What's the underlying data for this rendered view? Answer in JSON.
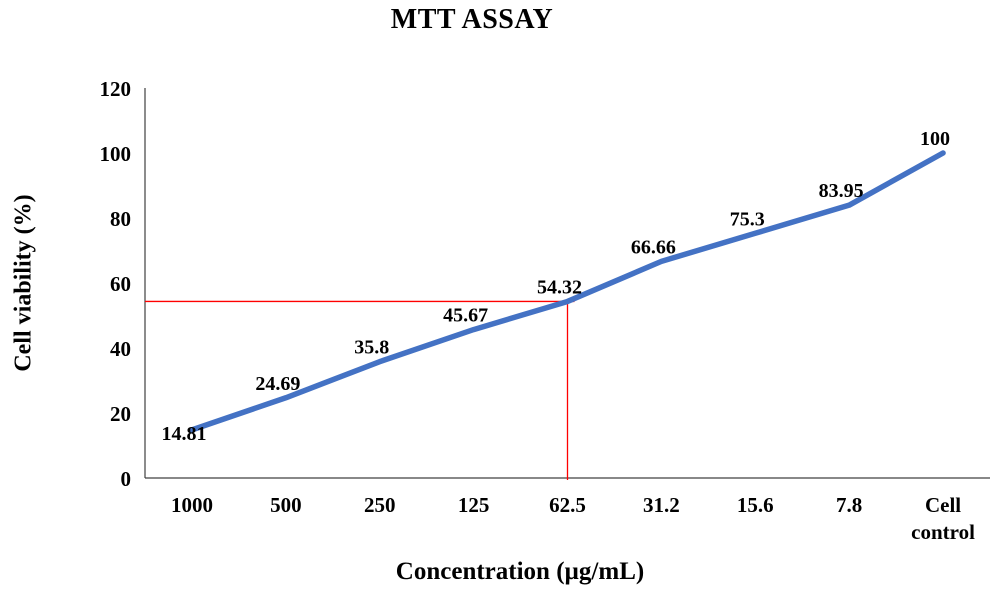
{
  "chart_data": {
    "type": "line",
    "title": "MTT ASSAY",
    "xlabel": "Concentration (µg/mL)",
    "ylabel": "Cell viability  (%)",
    "categories": [
      "1000",
      "500",
      "250",
      "125",
      "62.5",
      "31.2",
      "15.6",
      "7.8",
      "Cell control"
    ],
    "values": [
      14.81,
      24.69,
      35.8,
      45.67,
      54.32,
      66.66,
      75.3,
      83.95,
      100
    ],
    "labels": [
      "14.81",
      "24.69",
      "35.8",
      "45.67",
      "54.32",
      "66.66",
      "75.3",
      "83.95",
      "100"
    ],
    "ylim": [
      0,
      120
    ],
    "yticks": [
      0,
      20,
      40,
      60,
      80,
      100,
      120
    ],
    "grid": false,
    "legend": "none",
    "line_color": "#4472C4",
    "axis_color": "#404040",
    "reference_lines": {
      "color": "#FF0000",
      "category": "62.5",
      "value": 54.32
    }
  }
}
